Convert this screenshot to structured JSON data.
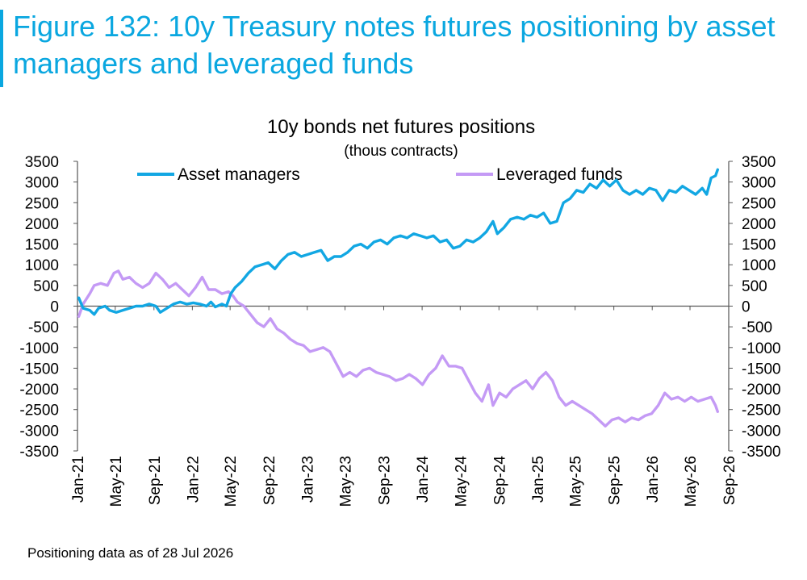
{
  "figure_title": "Figure 132: 10y Treasury notes futures positioning by asset managers and leveraged funds",
  "footnote": "Positioning data as of 28 Jul 2026",
  "colors": {
    "title": "#0aa7e0",
    "asset_managers": "#12a7e3",
    "leveraged_funds": "#c49af5",
    "axis": "#555555"
  },
  "chart_data": {
    "type": "line",
    "title": "10y bonds net futures positions",
    "subtitle": "(thous contracts)",
    "xlabel": "",
    "ylabel": "",
    "ylim": [
      -3500,
      3500
    ],
    "y_ticks": [
      3500,
      3000,
      2500,
      2000,
      1500,
      1000,
      500,
      0,
      -500,
      -1000,
      -1500,
      -2000,
      -2500,
      -3000,
      -3500
    ],
    "x_ticks": [
      "Jan-21",
      "May-21",
      "Sep-21",
      "Jan-22",
      "May-22",
      "Sep-22",
      "Jan-23",
      "May-23",
      "Sep-23",
      "Jan-24",
      "May-24",
      "Sep-24",
      "Jan-25",
      "May-25",
      "Sep-25",
      "Jan-26",
      "May-26",
      "Sep-26"
    ],
    "grid": false,
    "legend_position": "top",
    "series": [
      {
        "name": "Asset managers",
        "color": "#12a7e3",
        "points": [
          [
            "2021-01-05",
            200
          ],
          [
            "2021-01-19",
            -50
          ],
          [
            "2021-02-09",
            -100
          ],
          [
            "2021-02-23",
            -200
          ],
          [
            "2021-03-09",
            -50
          ],
          [
            "2021-03-30",
            0
          ],
          [
            "2021-04-13",
            -100
          ],
          [
            "2021-05-04",
            -150
          ],
          [
            "2021-05-25",
            -100
          ],
          [
            "2021-06-15",
            -50
          ],
          [
            "2021-07-06",
            0
          ],
          [
            "2021-07-27",
            0
          ],
          [
            "2021-08-17",
            50
          ],
          [
            "2021-09-07",
            0
          ],
          [
            "2021-09-21",
            -150
          ],
          [
            "2021-10-12",
            -50
          ],
          [
            "2021-11-02",
            50
          ],
          [
            "2021-11-23",
            100
          ],
          [
            "2021-12-14",
            50
          ],
          [
            "2022-01-04",
            80
          ],
          [
            "2022-01-25",
            50
          ],
          [
            "2022-02-15",
            0
          ],
          [
            "2022-03-01",
            100
          ],
          [
            "2022-03-15",
            -20
          ],
          [
            "2022-04-05",
            50
          ],
          [
            "2022-04-19",
            0
          ],
          [
            "2022-05-03",
            300
          ],
          [
            "2022-05-17",
            450
          ],
          [
            "2022-06-07",
            600
          ],
          [
            "2022-06-28",
            800
          ],
          [
            "2022-07-19",
            950
          ],
          [
            "2022-08-09",
            1000
          ],
          [
            "2022-08-30",
            1050
          ],
          [
            "2022-09-20",
            900
          ],
          [
            "2022-10-11",
            1100
          ],
          [
            "2022-11-01",
            1250
          ],
          [
            "2022-11-22",
            1300
          ],
          [
            "2022-12-13",
            1200
          ],
          [
            "2023-01-03",
            1250
          ],
          [
            "2023-01-24",
            1300
          ],
          [
            "2023-02-14",
            1350
          ],
          [
            "2023-03-07",
            1100
          ],
          [
            "2023-03-28",
            1200
          ],
          [
            "2023-04-18",
            1200
          ],
          [
            "2023-05-09",
            1300
          ],
          [
            "2023-05-30",
            1450
          ],
          [
            "2023-06-20",
            1500
          ],
          [
            "2023-07-11",
            1400
          ],
          [
            "2023-08-01",
            1550
          ],
          [
            "2023-08-22",
            1600
          ],
          [
            "2023-09-12",
            1500
          ],
          [
            "2023-10-03",
            1650
          ],
          [
            "2023-10-24",
            1700
          ],
          [
            "2023-11-14",
            1650
          ],
          [
            "2023-12-05",
            1750
          ],
          [
            "2023-12-26",
            1700
          ],
          [
            "2024-01-16",
            1650
          ],
          [
            "2024-02-06",
            1700
          ],
          [
            "2024-02-27",
            1550
          ],
          [
            "2024-03-19",
            1600
          ],
          [
            "2024-04-09",
            1400
          ],
          [
            "2024-04-30",
            1450
          ],
          [
            "2024-05-21",
            1600
          ],
          [
            "2024-06-11",
            1550
          ],
          [
            "2024-07-02",
            1650
          ],
          [
            "2024-07-23",
            1800
          ],
          [
            "2024-08-13",
            2050
          ],
          [
            "2024-08-27",
            1750
          ],
          [
            "2024-09-17",
            1900
          ],
          [
            "2024-10-08",
            2100
          ],
          [
            "2024-10-29",
            2150
          ],
          [
            "2024-11-19",
            2100
          ],
          [
            "2024-12-10",
            2200
          ],
          [
            "2024-12-31",
            2150
          ],
          [
            "2025-01-21",
            2250
          ],
          [
            "2025-02-11",
            2000
          ],
          [
            "2025-03-04",
            2050
          ],
          [
            "2025-03-25",
            2500
          ],
          [
            "2025-04-15",
            2600
          ],
          [
            "2025-05-06",
            2800
          ],
          [
            "2025-05-27",
            2750
          ],
          [
            "2025-06-17",
            2950
          ],
          [
            "2025-07-08",
            2850
          ],
          [
            "2025-07-29",
            3050
          ],
          [
            "2025-08-19",
            2900
          ],
          [
            "2025-09-09",
            3050
          ],
          [
            "2025-09-30",
            2800
          ],
          [
            "2025-10-21",
            2700
          ],
          [
            "2025-11-11",
            2800
          ],
          [
            "2025-12-02",
            2700
          ],
          [
            "2025-12-23",
            2850
          ],
          [
            "2026-01-13",
            2800
          ],
          [
            "2026-02-03",
            2550
          ],
          [
            "2026-02-24",
            2800
          ],
          [
            "2026-03-17",
            2750
          ],
          [
            "2026-04-07",
            2900
          ],
          [
            "2026-04-28",
            2800
          ],
          [
            "2026-05-19",
            2700
          ],
          [
            "2026-06-09",
            2850
          ],
          [
            "2026-06-23",
            2700
          ],
          [
            "2026-07-07",
            3100
          ],
          [
            "2026-07-21",
            3150
          ],
          [
            "2026-07-28",
            3300
          ]
        ]
      },
      {
        "name": "Leveraged funds",
        "color": "#c49af5",
        "points": [
          [
            "2021-01-05",
            -250
          ],
          [
            "2021-01-19",
            50
          ],
          [
            "2021-02-09",
            300
          ],
          [
            "2021-02-23",
            500
          ],
          [
            "2021-03-16",
            550
          ],
          [
            "2021-04-06",
            500
          ],
          [
            "2021-04-27",
            800
          ],
          [
            "2021-05-11",
            850
          ],
          [
            "2021-05-25",
            650
          ],
          [
            "2021-06-15",
            700
          ],
          [
            "2021-07-06",
            550
          ],
          [
            "2021-07-27",
            450
          ],
          [
            "2021-08-17",
            550
          ],
          [
            "2021-09-07",
            800
          ],
          [
            "2021-09-28",
            650
          ],
          [
            "2021-10-19",
            450
          ],
          [
            "2021-11-09",
            550
          ],
          [
            "2021-11-30",
            400
          ],
          [
            "2021-12-21",
            250
          ],
          [
            "2022-01-11",
            450
          ],
          [
            "2022-02-01",
            700
          ],
          [
            "2022-02-22",
            400
          ],
          [
            "2022-03-15",
            400
          ],
          [
            "2022-04-05",
            300
          ],
          [
            "2022-04-26",
            350
          ],
          [
            "2022-05-10",
            250
          ],
          [
            "2022-05-24",
            100
          ],
          [
            "2022-06-14",
            0
          ],
          [
            "2022-07-05",
            -200
          ],
          [
            "2022-07-26",
            -400
          ],
          [
            "2022-08-16",
            -500
          ],
          [
            "2022-09-06",
            -300
          ],
          [
            "2022-09-27",
            -550
          ],
          [
            "2022-10-18",
            -650
          ],
          [
            "2022-11-08",
            -800
          ],
          [
            "2022-11-29",
            -900
          ],
          [
            "2022-12-20",
            -950
          ],
          [
            "2023-01-10",
            -1100
          ],
          [
            "2023-01-31",
            -1050
          ],
          [
            "2023-02-21",
            -1000
          ],
          [
            "2023-03-14",
            -1100
          ],
          [
            "2023-04-04",
            -1400
          ],
          [
            "2023-04-25",
            -1700
          ],
          [
            "2023-05-16",
            -1600
          ],
          [
            "2023-06-06",
            -1700
          ],
          [
            "2023-06-27",
            -1550
          ],
          [
            "2023-07-18",
            -1500
          ],
          [
            "2023-08-08",
            -1600
          ],
          [
            "2023-08-29",
            -1650
          ],
          [
            "2023-09-19",
            -1700
          ],
          [
            "2023-10-10",
            -1800
          ],
          [
            "2023-10-31",
            -1750
          ],
          [
            "2023-11-21",
            -1650
          ],
          [
            "2023-12-12",
            -1750
          ],
          [
            "2024-01-02",
            -1900
          ],
          [
            "2024-01-23",
            -1650
          ],
          [
            "2024-02-13",
            -1500
          ],
          [
            "2024-03-05",
            -1200
          ],
          [
            "2024-03-26",
            -1450
          ],
          [
            "2024-04-16",
            -1450
          ],
          [
            "2024-05-07",
            -1500
          ],
          [
            "2024-05-28",
            -1800
          ],
          [
            "2024-06-18",
            -2100
          ],
          [
            "2024-07-09",
            -2300
          ],
          [
            "2024-07-30",
            -1900
          ],
          [
            "2024-08-13",
            -2400
          ],
          [
            "2024-09-03",
            -2100
          ],
          [
            "2024-09-24",
            -2200
          ],
          [
            "2024-10-15",
            -2000
          ],
          [
            "2024-11-05",
            -1900
          ],
          [
            "2024-11-26",
            -1800
          ],
          [
            "2024-12-17",
            -2000
          ],
          [
            "2025-01-07",
            -1750
          ],
          [
            "2025-01-28",
            -1600
          ],
          [
            "2025-02-18",
            -1800
          ],
          [
            "2025-03-11",
            -2200
          ],
          [
            "2025-04-01",
            -2400
          ],
          [
            "2025-04-22",
            -2300
          ],
          [
            "2025-05-13",
            -2400
          ],
          [
            "2025-06-03",
            -2500
          ],
          [
            "2025-06-24",
            -2600
          ],
          [
            "2025-07-15",
            -2750
          ],
          [
            "2025-08-05",
            -2900
          ],
          [
            "2025-08-26",
            -2750
          ],
          [
            "2025-09-16",
            -2700
          ],
          [
            "2025-10-07",
            -2800
          ],
          [
            "2025-10-28",
            -2700
          ],
          [
            "2025-11-18",
            -2750
          ],
          [
            "2025-12-09",
            -2650
          ],
          [
            "2025-12-30",
            -2600
          ],
          [
            "2026-01-20",
            -2400
          ],
          [
            "2026-02-10",
            -2100
          ],
          [
            "2026-03-03",
            -2250
          ],
          [
            "2026-03-24",
            -2200
          ],
          [
            "2026-04-14",
            -2300
          ],
          [
            "2026-05-05",
            -2200
          ],
          [
            "2026-05-26",
            -2300
          ],
          [
            "2026-06-16",
            -2250
          ],
          [
            "2026-07-07",
            -2200
          ],
          [
            "2026-07-21",
            -2400
          ],
          [
            "2026-07-28",
            -2550
          ]
        ]
      }
    ]
  }
}
